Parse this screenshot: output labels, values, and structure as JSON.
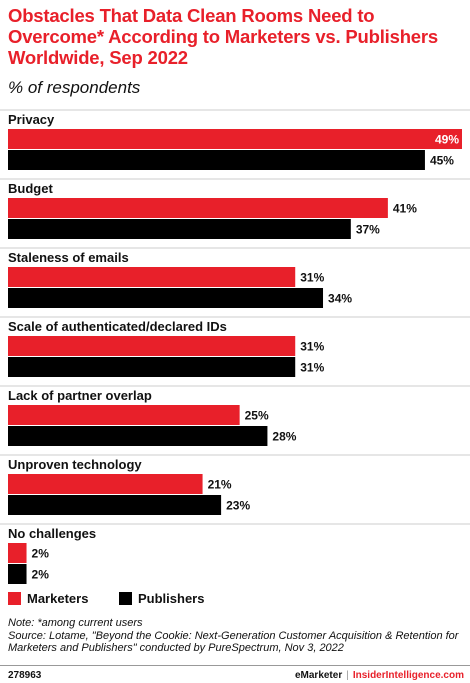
{
  "title": "Obstacles That Data Clean Rooms Need to Overcome* According to Marketers vs. Publishers Worldwide, Sep 2022",
  "subtitle": "% of respondents",
  "colors": {
    "marketers": "#e8202a",
    "publishers": "#000000",
    "divider": "#cccccc"
  },
  "chart_data": {
    "type": "bar",
    "orientation": "horizontal",
    "categories": [
      "Privacy",
      "Budget",
      "Staleness of emails",
      "Scale of authenticated/declared IDs",
      "Lack of partner overlap",
      "Unproven technology",
      "No challenges"
    ],
    "series": [
      {
        "name": "Marketers",
        "values": [
          49,
          41,
          31,
          31,
          25,
          21,
          2
        ]
      },
      {
        "name": "Publishers",
        "values": [
          45,
          37,
          34,
          31,
          28,
          23,
          2
        ]
      }
    ],
    "value_suffix": "%",
    "xlim": [
      0,
      49
    ],
    "legend_position": "bottom-left",
    "grid": false
  },
  "legend": {
    "marketers": "Marketers",
    "publishers": "Publishers"
  },
  "note": "Note: *among current users",
  "source": "Source: Lotame, \"Beyond the Cookie: Next-Generation Customer Acquisition & Retention for Marketers and Publishers\" conducted by PureSpectrum, Nov 3, 2022",
  "chart_id": "278963",
  "brand": {
    "emarketer": "eMarketer",
    "separator": "|",
    "insider": "InsiderIntelligence.com"
  }
}
